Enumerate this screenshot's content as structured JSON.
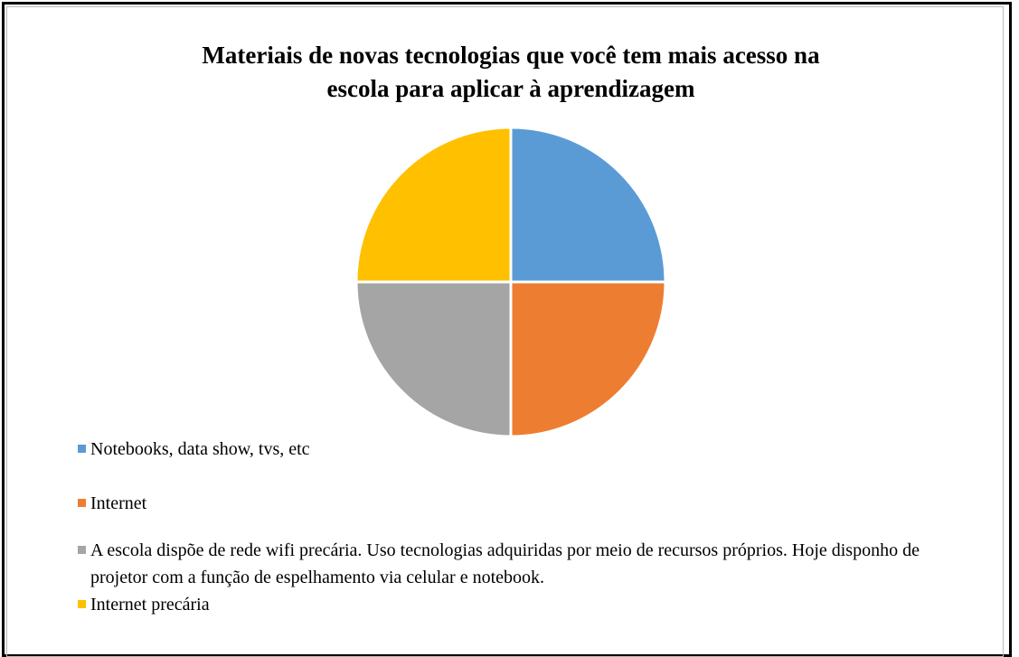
{
  "chart_data": {
    "type": "pie",
    "title": [
      "Materiais de novas tecnologias que você tem mais acesso na",
      "escola para aplicar à aprendizagem"
    ],
    "categories": [
      "Notebooks, data show, tvs, etc",
      "Internet",
      "A escola dispõe de rede wifi precária. Uso tecnologias adquiridas por meio de recursos próprios. Hoje disponho de projetor com a função de espelhamento via celular e notebook.",
      "Internet precária"
    ],
    "values": [
      25,
      25,
      25,
      25
    ],
    "colors": [
      "#5b9bd5",
      "#ed7d31",
      "#a5a5a5",
      "#ffc000"
    ],
    "legend": "bottom"
  }
}
